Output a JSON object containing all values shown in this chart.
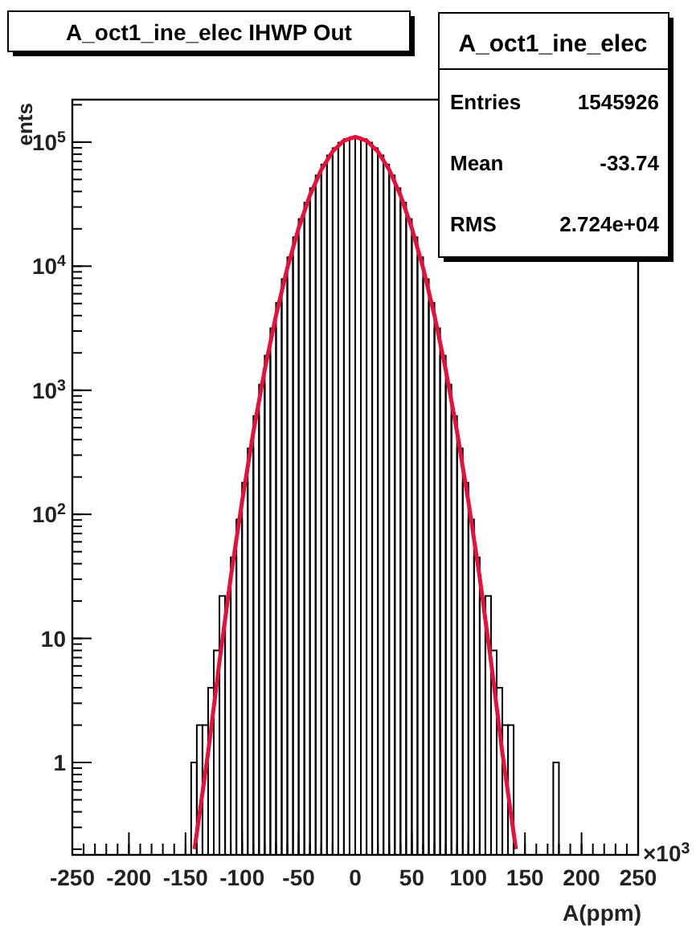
{
  "chart_data": {
    "type": "histogram",
    "title": "A_oct1_ine_elec IHWP Out",
    "xlabel": "A(ppm)",
    "ylabel": "ents",
    "bins": [
      -145,
      -140,
      -135,
      -130,
      -125,
      -120,
      -115,
      -110,
      -105,
      -100,
      -95,
      -90,
      -85,
      -80,
      -75,
      -70,
      -65,
      -60,
      -55,
      -50,
      -45,
      -40,
      -35,
      -30,
      -25,
      -20,
      -15,
      -10,
      -5,
      0,
      5,
      10,
      15,
      20,
      25,
      30,
      35,
      40,
      45,
      50,
      55,
      60,
      65,
      70,
      75,
      80,
      85,
      90,
      95,
      100,
      105,
      110,
      115,
      120,
      125,
      130,
      135,
      140,
      145,
      150,
      155,
      160,
      165,
      170,
      175,
      180
    ],
    "values": [
      1,
      2,
      2,
      4,
      8,
      22,
      21,
      45,
      91,
      180,
      340,
      620,
      1110,
      1900,
      3160,
      5070,
      7860,
      11800,
      17100,
      24000,
      32500,
      42500,
      53900,
      66000,
      78100,
      89400,
      99000,
      105900,
      109500,
      109500,
      105900,
      99000,
      89400,
      78100,
      66000,
      53900,
      42500,
      32500,
      24000,
      17100,
      11800,
      7860,
      5070,
      3160,
      1900,
      1110,
      620,
      340,
      180,
      91,
      45,
      21,
      22,
      8,
      4,
      2,
      2,
      null,
      null,
      null,
      null,
      null,
      null,
      null,
      1
    ],
    "color": "#000000",
    "series": [
      {
        "type": "line",
        "color": "#e8103a",
        "x": [
          -142,
          -130,
          -120,
          -110,
          -100,
          -90,
          -80,
          -70,
          -60,
          -50,
          -40,
          -30,
          -20,
          -10,
          0,
          10,
          20,
          30,
          40,
          50,
          60,
          70,
          80,
          90,
          100,
          110,
          120,
          130,
          142
        ],
        "values": [
          0.2,
          1.2,
          6.5,
          31,
          127,
          462,
          1460,
          4010,
          9680,
          20300,
          37300,
          59900,
          84000,
          102800,
          110000,
          102800,
          84000,
          59900,
          37300,
          20300,
          9680,
          4010,
          1460,
          462,
          127,
          31,
          6.5,
          1.2,
          0.2
        ]
      }
    ],
    "log": "y",
    "xlim": [
      -250,
      250
    ],
    "ylim": [
      0.18,
      220000
    ],
    "xticks": [
      -250,
      -200,
      -150,
      -100,
      -50,
      0,
      50,
      100,
      150,
      200,
      250
    ],
    "yticks": [
      1,
      10,
      {
        "value": 100,
        "label": "10$^{2}$"
      },
      {
        "value": 1000,
        "label": "10$^{3}$"
      },
      {
        "value": 10000,
        "label": "10$^{4}$"
      },
      {
        "value": 100000,
        "label": "10$^{5}$"
      }
    ],
    "grid": false,
    "annotations": [
      "A_oct1_ine_elec",
      "Entries",
      "1545926",
      "Mean",
      "-33.74",
      "RMS",
      "2.724e+04",
      "×10$^{3}$"
    ]
  }
}
